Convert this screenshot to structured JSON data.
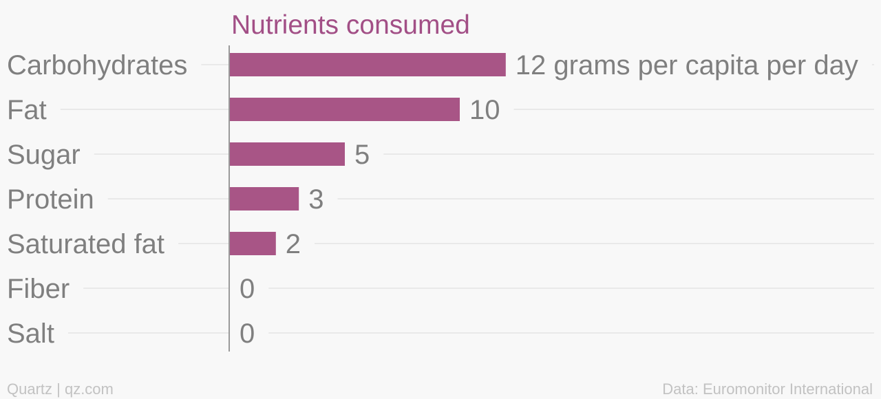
{
  "chart_data": {
    "type": "bar",
    "orientation": "horizontal",
    "title": "Nutrients consumed",
    "categories": [
      "Carbohydrates",
      "Fat",
      "Sugar",
      "Protein",
      "Saturated fat",
      "Fiber",
      "Salt"
    ],
    "values": [
      12,
      10,
      5,
      3,
      2,
      0,
      0
    ],
    "value_labels": [
      "12 grams per capita per day",
      "10",
      "5",
      "3",
      "2",
      "0",
      "0"
    ],
    "unit": "grams per capita per day",
    "xlim": [
      0,
      12
    ],
    "grid": true,
    "colors": {
      "bar": "#a85586",
      "title": "#a24f86",
      "text": "#7f7f7f",
      "footer": "#c2c2c2",
      "background": "#f8f8f8"
    }
  },
  "footer": {
    "source_left": "Quartz | qz.com",
    "source_right": "Data: Euromonitor International"
  }
}
